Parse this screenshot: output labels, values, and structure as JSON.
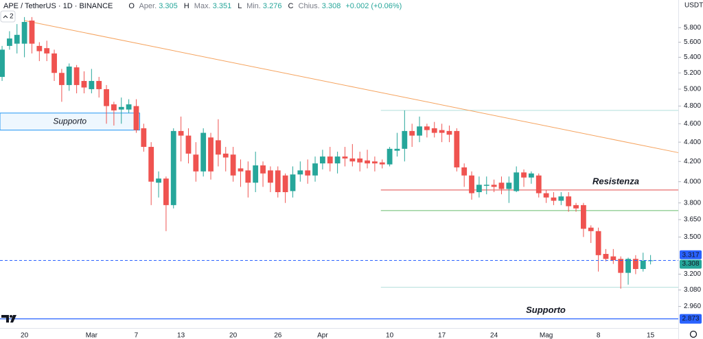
{
  "chart_data": {
    "type": "candlestick",
    "header": {
      "symbol": "APE / TetherUS · 1D · BINANCE",
      "labels": [
        "O",
        "Aper.",
        "H",
        "Max.",
        "L",
        "Min.",
        "C",
        "Chius."
      ],
      "change": "+0.002 (+0.06%)",
      "currency": "USDT",
      "indicator_count": 2
    },
    "categories": [
      null,
      null,
      null,
      "20",
      null,
      null,
      null,
      null,
      null,
      null,
      null,
      null,
      "Mar",
      null,
      null,
      null,
      null,
      null,
      "7",
      null,
      null,
      null,
      null,
      null,
      "13",
      null,
      null,
      null,
      null,
      null,
      null,
      "20",
      null,
      null,
      null,
      null,
      null,
      "26",
      null,
      null,
      null,
      null,
      null,
      "Apr",
      null,
      null,
      null,
      null,
      null,
      null,
      null,
      null,
      "10",
      null,
      null,
      null,
      null,
      null,
      null,
      "17",
      null,
      null,
      null,
      null,
      null,
      null,
      "24",
      null,
      null,
      null,
      null,
      null,
      null,
      "Mag",
      null,
      null,
      null,
      null,
      null,
      null,
      "8",
      null,
      null,
      null,
      null,
      null,
      null,
      "15"
    ],
    "open": [
      5.15,
      5.55,
      5.58,
      5.58,
      5.9,
      5.55,
      5.52,
      5.45,
      5.2,
      5.05,
      5.27,
      5.1,
      5.0,
      5.1,
      5.0,
      4.82,
      4.76,
      4.76,
      4.8,
      4.55,
      4.35,
      3.99,
      4.03,
      3.78,
      4.52,
      4.47,
      4.27,
      4.1,
      4.45,
      4.42,
      4.28,
      4.27,
      4.13,
      4.11,
      3.99,
      4.16,
      4.11,
      4.11,
      4.06,
      3.91,
      4.07,
      4.11,
      4.06,
      4.18,
      4.25,
      4.18,
      4.25,
      4.23,
      4.23,
      4.21,
      4.2,
      4.19,
      4.17,
      4.31,
      4.33,
      4.52,
      4.47,
      4.57,
      4.55,
      4.53,
      4.52,
      4.52,
      4.14,
      4.06,
      3.9,
      3.96,
      3.97,
      3.99,
      3.93,
      3.91,
      4.09,
      4.04,
      4.06,
      3.89,
      3.85,
      3.82,
      3.86,
      3.78,
      3.78,
      3.58,
      3.55,
      3.36,
      3.34,
      3.32,
      3.21,
      3.32,
      3.24,
      3.305
    ],
    "high": [
      5.55,
      5.75,
      5.85,
      5.95,
      5.95,
      5.6,
      5.62,
      5.5,
      5.25,
      5.32,
      5.3,
      5.22,
      5.25,
      5.15,
      5.05,
      4.85,
      4.9,
      4.88,
      4.88,
      4.6,
      4.4,
      4.1,
      4.05,
      4.55,
      4.68,
      4.55,
      4.4,
      4.55,
      4.5,
      4.65,
      4.35,
      4.35,
      4.22,
      4.2,
      4.3,
      4.2,
      4.15,
      4.15,
      4.08,
      4.15,
      4.2,
      4.22,
      4.25,
      4.32,
      4.35,
      4.3,
      4.35,
      4.38,
      4.3,
      4.32,
      4.25,
      4.22,
      4.35,
      4.5,
      4.75,
      4.6,
      4.68,
      4.6,
      4.62,
      4.6,
      4.58,
      4.55,
      4.18,
      4.1,
      4.05,
      4.05,
      4.02,
      4.05,
      4.05,
      4.15,
      4.12,
      4.1,
      4.08,
      3.92,
      3.9,
      3.9,
      3.9,
      3.8,
      3.8,
      3.6,
      3.58,
      3.4,
      3.4,
      3.34,
      3.33,
      3.35,
      3.37,
      3.351
    ],
    "low": [
      5.1,
      5.5,
      5.45,
      5.4,
      5.45,
      5.35,
      5.35,
      5.1,
      4.85,
      4.98,
      4.95,
      4.95,
      4.95,
      4.9,
      4.6,
      4.58,
      4.6,
      4.72,
      4.5,
      4.3,
      3.78,
      3.85,
      3.55,
      3.75,
      4.2,
      4.18,
      4.0,
      4.05,
      4.02,
      4.15,
      4.1,
      4.0,
      3.95,
      3.85,
      3.9,
      3.95,
      3.9,
      3.85,
      3.8,
      3.85,
      4.0,
      3.98,
      4.0,
      4.12,
      4.1,
      4.08,
      4.15,
      4.15,
      4.1,
      4.13,
      4.1,
      4.13,
      4.15,
      4.25,
      4.2,
      4.35,
      4.4,
      4.45,
      4.45,
      4.4,
      4.4,
      4.1,
      3.95,
      3.83,
      3.85,
      3.88,
      3.9,
      3.88,
      3.8,
      3.9,
      3.95,
      3.98,
      3.85,
      3.8,
      3.78,
      3.78,
      3.72,
      3.72,
      3.5,
      3.45,
      3.22,
      3.3,
      3.28,
      3.09,
      3.12,
      3.2,
      3.22,
      3.276
    ],
    "close": [
      5.5,
      5.65,
      5.7,
      5.88,
      5.58,
      5.48,
      5.45,
      5.2,
      5.05,
      5.28,
      5.05,
      5.02,
      5.1,
      5.0,
      4.8,
      4.75,
      4.79,
      4.82,
      4.53,
      4.35,
      4.0,
      4.03,
      3.78,
      4.52,
      4.47,
      4.28,
      4.1,
      4.5,
      4.1,
      4.27,
      4.24,
      4.06,
      4.1,
      3.99,
      4.16,
      4.08,
      3.99,
      3.9,
      3.9,
      4.07,
      4.11,
      4.06,
      4.18,
      4.25,
      4.18,
      4.25,
      4.23,
      4.2,
      4.19,
      4.18,
      4.18,
      4.17,
      4.33,
      4.33,
      4.52,
      4.47,
      4.57,
      4.53,
      4.5,
      4.5,
      4.48,
      4.14,
      4.06,
      3.89,
      3.97,
      3.97,
      3.95,
      3.93,
      3.99,
      4.09,
      4.04,
      4.08,
      3.89,
      3.85,
      3.82,
      3.86,
      3.77,
      3.75,
      3.57,
      3.55,
      3.35,
      3.32,
      3.31,
      3.21,
      3.32,
      3.24,
      3.305,
      3.308
    ],
    "up_color": "#26a69a",
    "down_color": "#ef5350",
    "ylim": [
      2.81,
      6.2
    ],
    "log_scale": true,
    "grid": false,
    "yticks": [
      {
        "value": 5.8,
        "label": "5.800"
      },
      {
        "value": 5.6,
        "label": "5.600"
      },
      {
        "value": 5.4,
        "label": "5.400"
      },
      {
        "value": 5.2,
        "label": "5.200"
      },
      {
        "value": 5.0,
        "label": "5.000"
      },
      {
        "value": 4.8,
        "label": "4.800"
      },
      {
        "value": 4.6,
        "label": "4.600"
      },
      {
        "value": 4.4,
        "label": "4.400"
      },
      {
        "value": 4.2,
        "label": "4.200"
      },
      {
        "value": 4.0,
        "label": "4.000"
      },
      {
        "value": 3.8,
        "label": "3.800"
      },
      {
        "value": 3.65,
        "label": "3.650"
      },
      {
        "value": 3.5,
        "label": "3.500"
      },
      {
        "value": 3.2,
        "label": "3.200"
      },
      {
        "value": 3.08,
        "label": "3.080"
      },
      {
        "value": 2.96,
        "label": "2.960"
      }
    ],
    "trend_line": {
      "values": [
        5.9,
        4.29
      ],
      "color": "#f5a25d"
    },
    "support_zone": {
      "label": "Supporto",
      "range": [
        4.53,
        4.72
      ],
      "color": "#2196f3"
    },
    "resistance": {
      "label": "Resistenza",
      "value": 3.92,
      "color": "#e04848"
    },
    "level_lines": [
      {
        "value": 4.75,
        "color": "#b2dfdb"
      },
      {
        "value": 3.73,
        "color": "#66bb6a"
      },
      {
        "value": 3.1,
        "color": "#b2dfdb"
      }
    ],
    "support_line": {
      "label": "Supporto",
      "value": 2.873,
      "color": "#2962ff"
    },
    "price_marker": {
      "value": 3.317,
      "color": "#2962ff"
    }
  }
}
